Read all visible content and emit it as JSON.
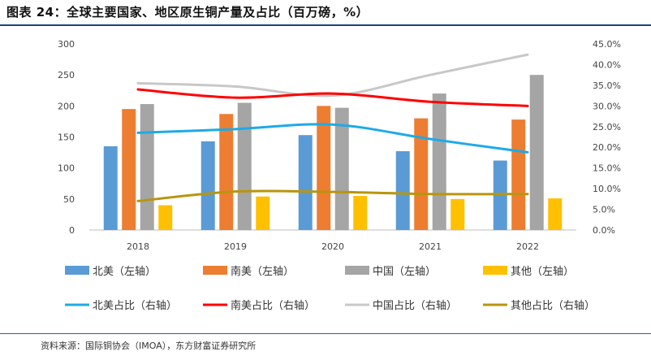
{
  "figure": {
    "title": "图表 24：全球主要国家、地区原生铜产量及占比（百万磅，%）",
    "source": "资料来源：国际铜协会（IMOA），东方财富证券研究所"
  },
  "colors": {
    "north_america": "#5b9bd5",
    "south_america": "#ed7d31",
    "china": "#a5a5a5",
    "other": "#ffc000",
    "line_north_america": "#1eaae7",
    "line_south_america": "#ff0000",
    "line_china": "#c8c8c8",
    "line_other": "#b8960c"
  },
  "chart_data": {
    "type": "bar",
    "categories": [
      "2018",
      "2019",
      "2020",
      "2021",
      "2022"
    ],
    "series": [
      {
        "name": "北美（左轴）",
        "axis": "left",
        "kind": "bar",
        "color": "#5b9bd5",
        "values": [
          135,
          143,
          153,
          127,
          112
        ]
      },
      {
        "name": "南美（左轴）",
        "axis": "left",
        "kind": "bar",
        "color": "#ed7d31",
        "values": [
          195,
          187,
          200,
          180,
          178
        ]
      },
      {
        "name": "中国（左轴）",
        "axis": "left",
        "kind": "bar",
        "color": "#a5a5a5",
        "values": [
          203,
          205,
          197,
          220,
          250
        ]
      },
      {
        "name": "其他（左轴）",
        "axis": "left",
        "kind": "bar",
        "color": "#ffc000",
        "values": [
          40,
          54,
          55,
          50,
          51
        ]
      },
      {
        "name": "北美占比（右轴）",
        "axis": "right",
        "kind": "line",
        "color": "#1eaae7",
        "values": [
          23.5,
          24.4,
          25.5,
          22.0,
          18.8
        ]
      },
      {
        "name": "南美占比（右轴）",
        "axis": "right",
        "kind": "line",
        "color": "#ff0000",
        "values": [
          34.0,
          32.0,
          33.0,
          31.0,
          30.0
        ]
      },
      {
        "name": "中国占比（右轴）",
        "axis": "right",
        "kind": "line",
        "color": "#c8c8c8",
        "values": [
          35.5,
          34.7,
          32.5,
          37.5,
          42.4
        ]
      },
      {
        "name": "其他占比（右轴）",
        "axis": "right",
        "kind": "line",
        "color": "#b8960c",
        "values": [
          7.0,
          9.3,
          9.2,
          8.7,
          8.7
        ]
      }
    ],
    "y_left": {
      "min": 0,
      "max": 300,
      "ticks": [
        "0",
        "50",
        "100",
        "150",
        "200",
        "250",
        "300"
      ]
    },
    "y_right": {
      "min": 0,
      "max": 45,
      "ticks": [
        "0.0%",
        "5.0%",
        "10.0%",
        "15.0%",
        "20.0%",
        "25.0%",
        "30.0%",
        "35.0%",
        "40.0%",
        "45.0%"
      ]
    },
    "grid": false,
    "legend": "bottom"
  }
}
